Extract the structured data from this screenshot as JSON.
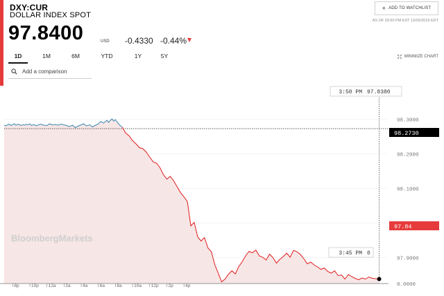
{
  "header": {
    "ticker": "DXY:CUR",
    "name": "DOLLAR INDEX SPOT",
    "price": "97.8400",
    "currency": "USD",
    "change": "-0.4330",
    "change_pct": "-0.44%",
    "watchlist_button": "ADD TO WATCHLIST",
    "as_of": "AS OF 03:50 PM EST 12/02/2019 EDT"
  },
  "tabs": [
    {
      "label": "1D",
      "active": true
    },
    {
      "label": "1M",
      "active": false
    },
    {
      "label": "6M",
      "active": false
    },
    {
      "label": "YTD",
      "active": false
    },
    {
      "label": "1Y",
      "active": false
    },
    {
      "label": "5Y",
      "active": false
    }
  ],
  "minimize_label": "MINIMIZE CHART",
  "compare": {
    "placeholder": "Add a comparison"
  },
  "watermark": "BloombergMarkets",
  "colors": {
    "accent": "#e63b3b",
    "up_line": "#3b87b0",
    "down_line": "#e01b1b",
    "fill": "#f7e6e6"
  },
  "chart_data": {
    "type": "line",
    "xlim": [
      0,
      44
    ],
    "ylim": [
      0,
      98.35
    ],
    "y_ticks": [
      "98.3000",
      "98.2000",
      "98.1000",
      "98.0000",
      "97.9000",
      "0.0000"
    ],
    "x_ticks": [
      "8p",
      "10p",
      "12a",
      "2a",
      "4a",
      "6a",
      "8a",
      "10a",
      "12p",
      "2p",
      "4p"
    ],
    "x_tick_hours": [
      1,
      3,
      5,
      7,
      9,
      11,
      13,
      15,
      17,
      19,
      21
    ],
    "previous_close": "98.2730",
    "last_value_label": "97.84",
    "crosshair": {
      "time": "3:50 PM",
      "value": "97.8380",
      "bottom_time": "3:45 PM",
      "bottom_value": "0"
    },
    "series": [
      {
        "x": [
          0,
          0.2,
          0.4,
          0.6,
          0.8,
          1.0,
          1.2,
          1.4,
          1.6,
          1.8,
          2.0,
          2.2,
          2.4,
          2.6,
          2.8,
          3.0,
          3.2,
          3.4,
          3.6,
          3.8,
          4.0,
          4.3,
          4.6,
          5.0,
          5.3,
          5.6,
          6.0,
          6.3,
          6.6,
          7.0,
          7.3,
          7.6,
          8.0,
          8.3,
          8.6,
          9.0,
          9.3,
          9.6,
          10.0,
          10.3,
          10.6,
          11.0,
          11.3,
          11.6,
          12.0,
          12.2,
          12.4,
          12.6,
          12.8,
          13.0,
          13.2,
          13.4,
          13.6,
          13.8
        ],
        "y": [
          98.283,
          98.281,
          98.284,
          98.286,
          98.282,
          98.285,
          98.287,
          98.283,
          98.286,
          98.284,
          98.282,
          98.285,
          98.283,
          98.286,
          98.284,
          98.287,
          98.282,
          98.285,
          98.283,
          98.281,
          98.284,
          98.286,
          98.283,
          98.282,
          98.287,
          98.284,
          98.285,
          98.283,
          98.286,
          98.284,
          98.282,
          98.279,
          98.283,
          98.276,
          98.28,
          98.284,
          98.287,
          98.281,
          98.284,
          98.278,
          98.282,
          98.287,
          98.294,
          98.289,
          98.297,
          98.291,
          98.297,
          98.301,
          98.295,
          98.299,
          98.292,
          98.286,
          98.281,
          98.277
        ]
      },
      {
        "x": [
          13.8,
          14.2,
          14.6,
          15.0,
          15.4,
          15.8,
          16.2,
          16.6,
          17.0,
          17.4,
          17.8,
          18.2,
          18.6,
          19.0,
          19.4,
          19.8,
          20.2,
          20.6,
          21.0,
          21.4,
          21.8,
          22.2,
          22.6,
          23.0,
          23.4,
          23.8,
          24.2,
          24.6,
          25.0,
          25.4,
          25.8,
          26.2,
          26.6,
          27.0,
          27.4,
          27.8,
          28.2,
          28.6,
          29.0,
          29.4,
          29.8,
          30.2,
          30.6,
          31.0,
          31.4,
          31.8,
          32.2,
          32.6,
          33.0,
          33.4,
          33.8,
          34.2,
          34.6,
          35.0,
          35.4,
          35.8,
          36.2,
          36.6,
          37.0,
          37.4,
          37.8,
          38.2,
          38.6,
          39.0,
          39.4,
          39.8,
          40.2,
          40.6,
          41.0,
          41.4,
          41.8,
          42.2,
          42.6,
          43.0,
          43.4,
          43.8
        ],
        "y": [
          98.277,
          98.26,
          98.252,
          98.238,
          98.229,
          98.218,
          98.215,
          98.205,
          98.191,
          98.177,
          98.173,
          98.16,
          98.14,
          98.127,
          98.135,
          98.122,
          98.105,
          98.088,
          98.076,
          98.062,
          97.992,
          98.002,
          97.96,
          97.948,
          97.958,
          97.928,
          97.917,
          97.88,
          97.855,
          97.83,
          97.838,
          97.852,
          97.862,
          97.853,
          97.874,
          97.888,
          97.905,
          97.918,
          97.914,
          97.922,
          97.905,
          97.901,
          97.893,
          97.91,
          97.9,
          97.884,
          97.895,
          97.903,
          97.913,
          97.901,
          97.921,
          97.917,
          97.909,
          97.897,
          97.882,
          97.887,
          97.879,
          97.873,
          97.866,
          97.87,
          97.86,
          97.855,
          97.862,
          97.848,
          97.85,
          97.838,
          97.851,
          97.845,
          97.84,
          97.836,
          97.841,
          97.838,
          97.844,
          97.84,
          97.839,
          97.838
        ]
      }
    ]
  }
}
